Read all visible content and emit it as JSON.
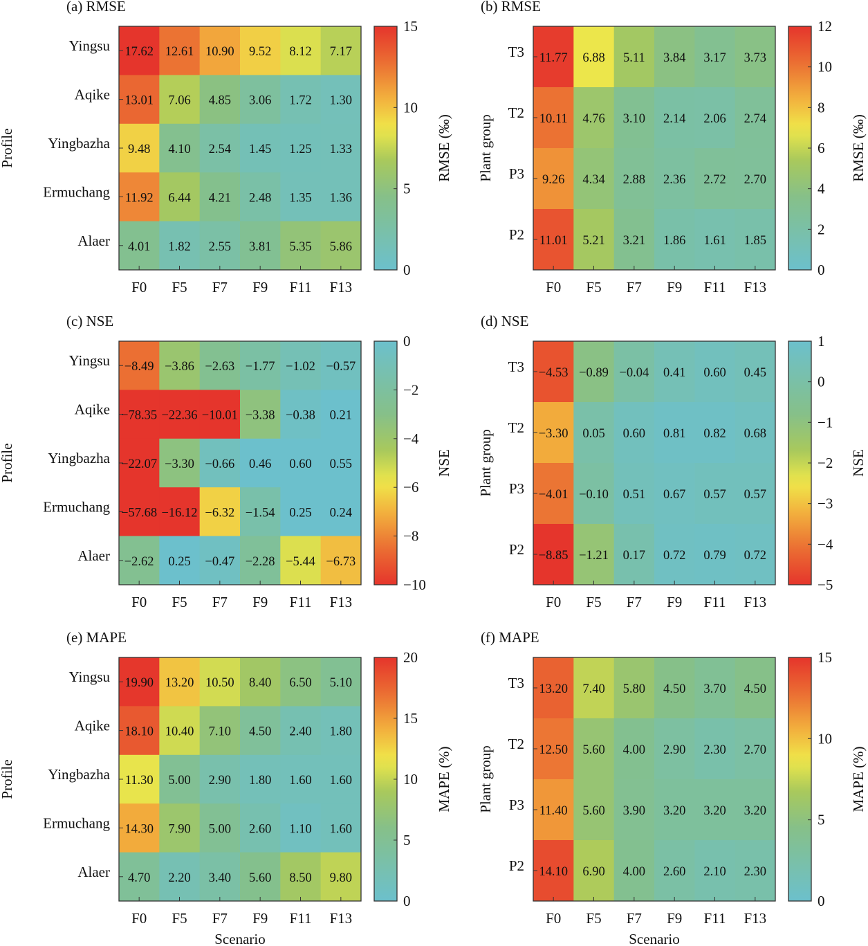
{
  "chart_data": [
    {
      "type": "heatmap",
      "title": "(a) RMSE",
      "ylabel": "Profile",
      "xlabel": "",
      "colorbar_label": "RMSE (‰)",
      "x": [
        "F0",
        "F5",
        "F7",
        "F9",
        "F11",
        "F13"
      ],
      "y": [
        "Yingsu",
        "Aqike",
        "Yingbazha",
        "Ermuchang",
        "Alaer"
      ],
      "range": [
        0,
        15
      ],
      "ticks": [
        0,
        5,
        10,
        15
      ],
      "values": [
        [
          17.62,
          12.61,
          10.9,
          9.52,
          8.12,
          7.17
        ],
        [
          13.01,
          7.06,
          4.85,
          3.06,
          1.72,
          1.3
        ],
        [
          9.48,
          4.1,
          2.54,
          1.45,
          1.25,
          1.33
        ],
        [
          11.92,
          6.44,
          4.21,
          2.48,
          1.35,
          1.36
        ],
        [
          4.01,
          1.82,
          2.55,
          3.81,
          5.35,
          5.86
        ]
      ]
    },
    {
      "type": "heatmap",
      "title": "(b) RMSE",
      "ylabel": "Plant group",
      "xlabel": "",
      "colorbar_label": "RMSE (‰)",
      "x": [
        "F0",
        "F5",
        "F7",
        "F9",
        "F11",
        "F13"
      ],
      "y": [
        "T3",
        "T2",
        "P3",
        "P2"
      ],
      "range": [
        0,
        12
      ],
      "ticks": [
        0,
        2,
        4,
        6,
        8,
        10,
        12
      ],
      "values": [
        [
          11.77,
          6.88,
          5.11,
          3.84,
          3.17,
          3.73
        ],
        [
          10.11,
          4.76,
          3.1,
          2.14,
          2.06,
          2.74
        ],
        [
          9.26,
          4.34,
          2.88,
          2.36,
          2.72,
          2.7
        ],
        [
          11.01,
          5.21,
          3.21,
          1.86,
          1.61,
          1.85
        ]
      ]
    },
    {
      "type": "heatmap",
      "title": "(c) NSE",
      "ylabel": "Profile",
      "xlabel": "",
      "colorbar_label": "NSE",
      "reversed": true,
      "x": [
        "F0",
        "F5",
        "F7",
        "F9",
        "F11",
        "F13"
      ],
      "y": [
        "Yingsu",
        "Aqike",
        "Yingbazha",
        "Ermuchang",
        "Alaer"
      ],
      "range": [
        -10,
        0
      ],
      "ticks": [
        -10,
        -8,
        -6,
        -4,
        -2,
        0
      ],
      "values": [
        [
          -8.49,
          -3.86,
          -2.63,
          -1.77,
          -1.02,
          -0.57
        ],
        [
          -78.35,
          -22.36,
          -10.01,
          -3.38,
          -0.38,
          0.21
        ],
        [
          -22.07,
          -3.3,
          -0.66,
          0.46,
          0.6,
          0.55
        ],
        [
          -57.68,
          -16.12,
          -6.32,
          -1.54,
          0.25,
          0.24
        ],
        [
          -2.62,
          0.25,
          -0.47,
          -2.28,
          -5.44,
          -6.73
        ]
      ]
    },
    {
      "type": "heatmap",
      "title": "(d) NSE",
      "ylabel": "Plant group",
      "xlabel": "",
      "colorbar_label": "NSE",
      "reversed": true,
      "x": [
        "F0",
        "F5",
        "F7",
        "F9",
        "F11",
        "F13"
      ],
      "y": [
        "T3",
        "T2",
        "P3",
        "P2"
      ],
      "range": [
        -5,
        1
      ],
      "ticks": [
        -5,
        -4,
        -3,
        -2,
        -1,
        0,
        1
      ],
      "values": [
        [
          -4.53,
          -0.89,
          -0.04,
          0.41,
          0.6,
          0.45
        ],
        [
          -3.3,
          0.05,
          0.6,
          0.81,
          0.82,
          0.68
        ],
        [
          -4.01,
          -0.1,
          0.51,
          0.67,
          0.57,
          0.57
        ],
        [
          -8.85,
          -1.21,
          0.17,
          0.72,
          0.79,
          0.72
        ]
      ]
    },
    {
      "type": "heatmap",
      "title": "(e) MAPE",
      "ylabel": "Profile",
      "xlabel": "Scenario",
      "colorbar_label": "MAPE (%)",
      "x": [
        "F0",
        "F5",
        "F7",
        "F9",
        "F11",
        "F13"
      ],
      "y": [
        "Yingsu",
        "Aqike",
        "Yingbazha",
        "Ermuchang",
        "Alaer"
      ],
      "range": [
        0,
        20
      ],
      "ticks": [
        0,
        5,
        10,
        15,
        20
      ],
      "values": [
        [
          19.9,
          13.2,
          10.5,
          8.4,
          6.5,
          5.1
        ],
        [
          18.1,
          10.4,
          7.1,
          4.5,
          2.4,
          1.8
        ],
        [
          11.3,
          5.0,
          2.9,
          1.8,
          1.6,
          1.6
        ],
        [
          14.3,
          7.9,
          5.0,
          2.6,
          1.1,
          1.6
        ],
        [
          4.7,
          2.2,
          3.4,
          5.6,
          8.5,
          9.8
        ]
      ]
    },
    {
      "type": "heatmap",
      "title": "(f) MAPE",
      "ylabel": "Plant group",
      "xlabel": "Scenario",
      "colorbar_label": "MAPE (%)",
      "x": [
        "F0",
        "F5",
        "F7",
        "F9",
        "F11",
        "F13"
      ],
      "y": [
        "T3",
        "T2",
        "P3",
        "P2"
      ],
      "range": [
        0,
        15
      ],
      "ticks": [
        0,
        5,
        10,
        15
      ],
      "values": [
        [
          13.2,
          7.4,
          5.8,
          4.5,
          3.7,
          4.5
        ],
        [
          12.5,
          5.6,
          4.0,
          2.9,
          2.3,
          2.7
        ],
        [
          11.4,
          5.6,
          3.9,
          3.2,
          3.2,
          3.2
        ],
        [
          14.1,
          6.9,
          4.0,
          2.6,
          2.1,
          2.3
        ]
      ]
    }
  ],
  "colormap": [
    "#6cc0cc",
    "#86c089",
    "#a9c95c",
    "#f0e84a",
    "#f2a93c",
    "#ea6a32",
    "#e5352c"
  ]
}
